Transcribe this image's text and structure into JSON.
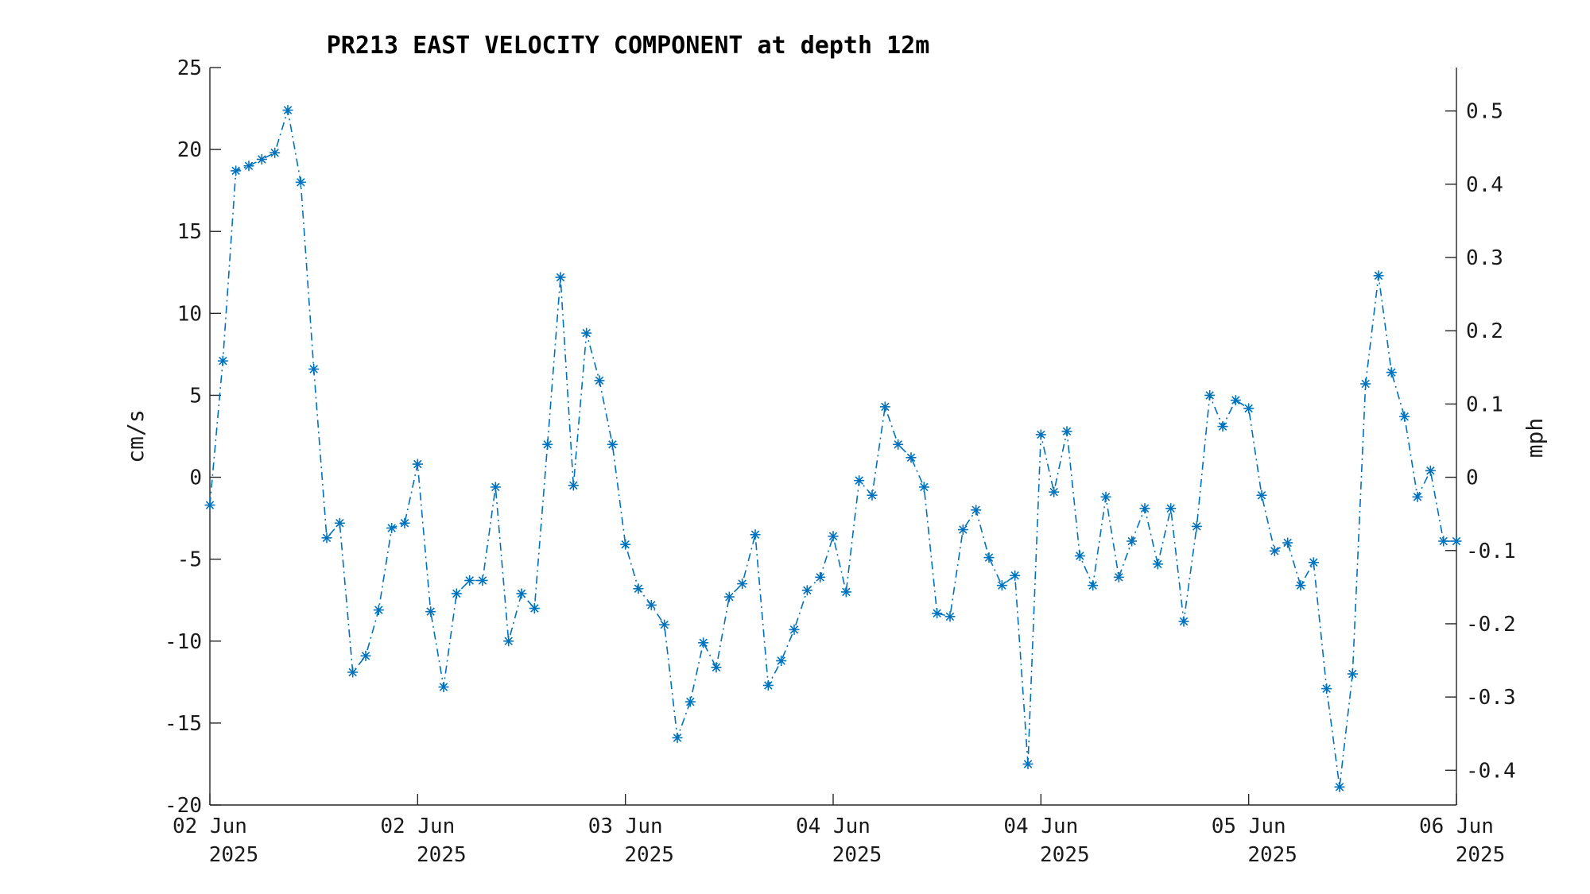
{
  "colors": {
    "series": "#0072BD",
    "axis": "#262626",
    "text": "#1a1a1a"
  },
  "chart_data": {
    "type": "line",
    "title": "PR213 EAST VELOCITY COMPONENT at depth 12m",
    "xlabel": "",
    "ylabel": "cm/s",
    "y2label": "mph",
    "ylim": [
      -20,
      25
    ],
    "y2lim": [
      -0.4474,
      0.5593
    ],
    "xlim": [
      0,
      96
    ],
    "x_units": "hours",
    "x_ticks": [
      {
        "x": 0,
        "line1": "02 Jun",
        "line2": "2025"
      },
      {
        "x": 16,
        "line1": "02 Jun",
        "line2": "2025"
      },
      {
        "x": 32,
        "line1": "03 Jun",
        "line2": "2025"
      },
      {
        "x": 48,
        "line1": "04 Jun",
        "line2": "2025"
      },
      {
        "x": 64,
        "line1": "04 Jun",
        "line2": "2025"
      },
      {
        "x": 80,
        "line1": "05 Jun",
        "line2": "2025"
      },
      {
        "x": 96,
        "line1": "06 Jun",
        "line2": "2025"
      }
    ],
    "y_ticks": [
      25,
      20,
      15,
      10,
      5,
      0,
      -5,
      -10,
      -15,
      -20
    ],
    "y2_ticks": [
      "0.5",
      "0.4",
      "0.3",
      "0.2",
      "0.1",
      "0",
      "-0.1",
      "-0.2",
      "-0.3",
      "-0.4"
    ],
    "y2_tick_values": [
      0.5,
      0.4,
      0.3,
      0.2,
      0.1,
      0,
      -0.1,
      -0.2,
      -0.3,
      -0.4
    ],
    "grid": false,
    "marker": "asterisk",
    "line_style": "dash-dot",
    "series": [
      {
        "x": [
          0,
          1,
          2,
          3,
          4,
          5,
          6,
          7,
          8,
          9,
          10,
          11,
          12,
          13,
          14,
          15,
          16,
          17,
          18,
          19,
          20,
          21,
          22,
          23,
          24,
          25,
          26,
          27,
          28,
          29,
          30,
          31,
          32,
          33,
          34,
          35,
          36,
          37,
          38,
          39,
          40,
          41,
          42,
          43,
          44,
          45,
          46,
          47,
          48,
          49,
          50,
          51,
          52,
          53,
          54,
          55,
          56,
          57,
          58,
          59,
          60,
          61,
          62,
          63,
          64,
          65,
          66,
          67,
          68,
          69,
          70,
          71,
          72,
          73,
          74,
          75,
          76,
          77,
          78,
          79,
          80,
          81,
          82,
          83,
          84,
          85,
          86,
          87,
          88,
          89,
          90,
          91,
          92,
          93,
          94,
          95,
          96
        ],
        "values": [
          -1.7,
          7.1,
          18.7,
          19.0,
          19.4,
          19.8,
          22.4,
          18.0,
          6.6,
          -3.7,
          -2.8,
          -11.9,
          -10.9,
          -8.1,
          -3.1,
          -2.8,
          0.8,
          -8.2,
          -12.8,
          -7.1,
          -6.3,
          -6.3,
          -0.6,
          -10.0,
          -7.1,
          -8.0,
          2.0,
          12.2,
          -0.5,
          8.8,
          5.9,
          2.0,
          -4.1,
          -6.8,
          -7.8,
          -9.0,
          -15.9,
          -13.7,
          -10.1,
          -11.6,
          -7.3,
          -6.5,
          -3.5,
          -12.7,
          -11.2,
          -9.3,
          -6.9,
          -6.1,
          -3.6,
          -7.0,
          -0.2,
          -1.1,
          4.3,
          2.0,
          1.2,
          -0.6,
          -8.3,
          -8.5,
          -3.2,
          -2.0,
          -4.9,
          -6.6,
          -6.0,
          -17.5,
          2.6,
          -0.9,
          2.8,
          -4.8,
          -6.6,
          -1.2,
          -6.1,
          -3.9,
          -1.9,
          -5.3,
          -1.9,
          -8.8,
          -3.0,
          5.0,
          3.1,
          4.7,
          4.2,
          -1.1,
          -4.5,
          -4.0,
          -6.6,
          -5.2,
          -12.9,
          -18.9,
          -12.0,
          5.7,
          12.3,
          6.4,
          3.7,
          -1.2,
          0.4,
          -3.9,
          -3.9
        ]
      }
    ]
  }
}
